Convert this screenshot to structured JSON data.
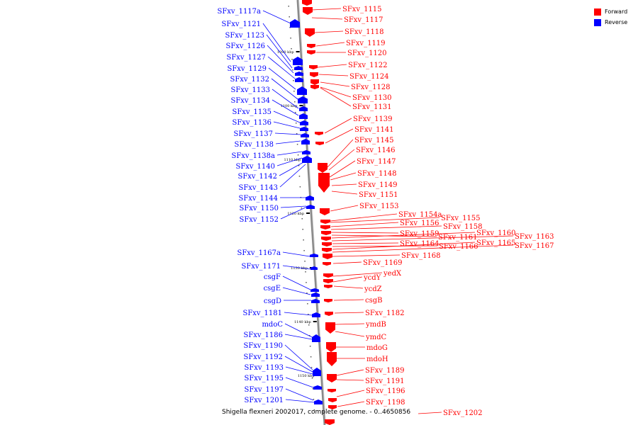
{
  "legend": {
    "items": [
      {
        "label": "Forward",
        "color": "#ff0000"
      },
      {
        "label": "Reverse",
        "color": "#0000ff"
      }
    ]
  },
  "caption": "Shigella flexneri 2002017, complete genome. - 0..4650856",
  "scale_labels": [
    "1090 kbp",
    "1100 kbp",
    "1110 kbp",
    "1120 kbp",
    "1130 kbp",
    "1140 kbp",
    "1150 kbp"
  ],
  "reverse_genes": [
    "SFxv_1117a",
    "SFxv_1121",
    "SFxv_1123",
    "SFxv_1126",
    "SFxv_1127",
    "SFxv_1129",
    "SFxv_1132",
    "SFxv_1133",
    "SFxv_1134",
    "SFxv_1135",
    "SFxv_1136",
    "SFxv_1137",
    "SFxv_1138",
    "SFxv_1138a",
    "SFxv_1140",
    "SFxv_1142",
    "SFxv_1143",
    "SFxv_1144",
    "SFxv_1150",
    "SFxv_1152",
    "SFxv_1167a",
    "SFxv_1171",
    "csgF",
    "csgE",
    "csgD",
    "SFxv_1181",
    "mdoC",
    "SFxv_1186",
    "SFxv_1190",
    "SFxv_1192",
    "SFxv_1193",
    "SFxv_1195",
    "SFxv_1197",
    "SFxv_1201"
  ],
  "forward_genes": [
    "SFxv_1115",
    "SFxv_1117",
    "SFxv_1118",
    "SFxv_1119",
    "SFxv_1120",
    "SFxv_1122",
    "SFxv_1124",
    "SFxv_1128",
    "SFxv_1130",
    "SFxv_1131",
    "SFxv_1139",
    "SFxv_1141",
    "SFxv_1145",
    "SFxv_1146",
    "SFxv_1147",
    "SFxv_1148",
    "SFxv_1149",
    "SFxv_1151",
    "SFxv_1153",
    "SFxv_1154a",
    "SFxv_1155",
    "SFxv_1156",
    "SFxv_1158",
    "SFxv_1159",
    "SFxv_1161",
    "SFxv_1160",
    "SFxv_1163",
    "SFxv_1164",
    "SFxv_1166",
    "SFxv_1165",
    "SFxv_1167",
    "SFxv_1168",
    "SFxv_1169",
    "yedX",
    "ycdY",
    "ycdZ",
    "csgB",
    "SFxv_1182",
    "ymdB",
    "ymdC",
    "mdoG",
    "mdoH",
    "SFxv_1189",
    "SFxv_1191",
    "SFxv_1196",
    "SFxv_1198",
    "SFxv_1202"
  ]
}
